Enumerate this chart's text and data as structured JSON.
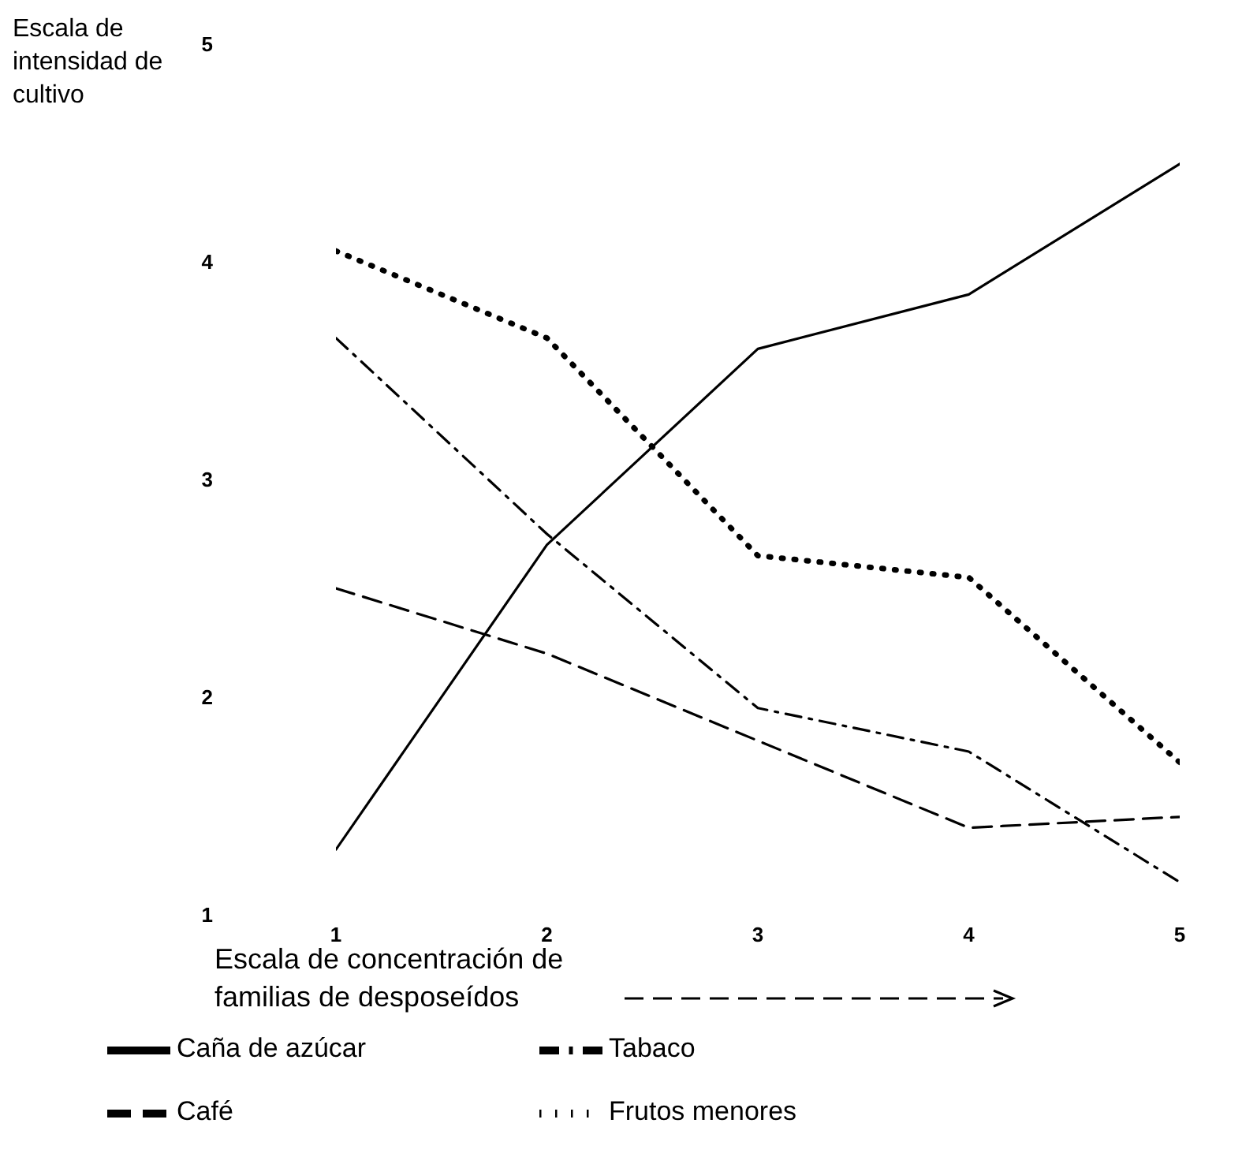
{
  "chart_data": {
    "type": "line",
    "ylabel": "Escala de intensidad de cultivo",
    "xlabel": "Escala de concentración de familias de desposeídos",
    "x": [
      1,
      2,
      3,
      4,
      5
    ],
    "xlim": [
      1,
      5
    ],
    "xticks": [
      1,
      2,
      3,
      4,
      5
    ],
    "ylim": [
      1,
      5
    ],
    "yticks": [
      1,
      2,
      3,
      4,
      5
    ],
    "grid": false,
    "legend": "bottom",
    "marker": "none",
    "series": [
      {
        "name": "Caña de azúcar",
        "color": "#000000",
        "line_style": "solid",
        "values": [
          1.3,
          2.7,
          3.6,
          3.85,
          4.45
        ]
      },
      {
        "name": "Tabaco",
        "color": "#000000",
        "line_style": "dashdot",
        "values": [
          3.65,
          2.75,
          1.95,
          1.75,
          1.15
        ]
      },
      {
        "name": "Café",
        "color": "#000000",
        "line_style": "dashed",
        "values": [
          2.5,
          2.2,
          1.8,
          1.4,
          1.45
        ]
      },
      {
        "name": "Frutos menores",
        "color": "#000000",
        "line_style": "dotted",
        "values": [
          4.05,
          3.65,
          2.65,
          2.55,
          1.7
        ]
      }
    ]
  }
}
